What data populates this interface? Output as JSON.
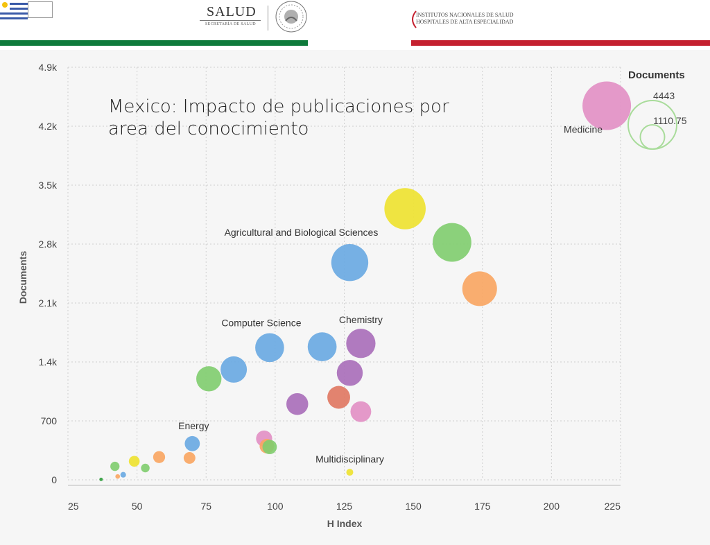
{
  "header": {
    "salud_logo": "SALUD",
    "salud_subtitle": "SECRETARÍA DE SALUD",
    "institution_line1": "INSTITUTOS NACIONALES DE SALUD",
    "institution_line2": "HOSPITALES DE ALTA ESPECIALIDAD",
    "colors": {
      "green_bar": "#0e7a3b",
      "red_bar": "#c4202f"
    }
  },
  "chart_data": {
    "type": "scatter",
    "title": "Mexico: Impacto de publicaciones por area del conocimiento",
    "xlabel": "H Index",
    "ylabel": "Documents",
    "xlim": [
      25,
      225
    ],
    "ylim": [
      0,
      4900
    ],
    "x_ticks": [
      "25",
      "50",
      "75",
      "100",
      "125",
      "150",
      "175",
      "200",
      "225"
    ],
    "y_ticks": [
      "0",
      "700",
      "1.4k",
      "2.1k",
      "2.8k",
      "3.5k",
      "4.2k",
      "4.9k"
    ],
    "grid": true,
    "size_legend": {
      "title": "Documents",
      "max_label": "4443",
      "min_label": "1110.75",
      "placement": "top-right"
    },
    "points": [
      {
        "x": 220,
        "y": 4443,
        "size": 4443,
        "color": "#e28fc4",
        "label": "Medicine"
      },
      {
        "x": 147,
        "y": 3220,
        "size": 3220,
        "color": "#eee22d",
        "label": ""
      },
      {
        "x": 164,
        "y": 2820,
        "size": 2820,
        "color": "#7fcd6e",
        "label": ""
      },
      {
        "x": 127,
        "y": 2580,
        "size": 2580,
        "color": "#68a8e2",
        "label": "Agricultural and Biological Sciences"
      },
      {
        "x": 174,
        "y": 2270,
        "size": 2270,
        "color": "#f9a560",
        "label": ""
      },
      {
        "x": 131,
        "y": 1620,
        "size": 1620,
        "color": "#a96db9",
        "label": "Chemistry"
      },
      {
        "x": 117,
        "y": 1580,
        "size": 1580,
        "color": "#68a8e2",
        "label": ""
      },
      {
        "x": 98,
        "y": 1570,
        "size": 1570,
        "color": "#68a8e2",
        "label": "Computer Science"
      },
      {
        "x": 85,
        "y": 1310,
        "size": 1310,
        "color": "#68a8e2",
        "label": ""
      },
      {
        "x": 127,
        "y": 1270,
        "size": 1270,
        "color": "#a96db9",
        "label": ""
      },
      {
        "x": 76,
        "y": 1200,
        "size": 1200,
        "color": "#7fcd6e",
        "label": ""
      },
      {
        "x": 123,
        "y": 980,
        "size": 980,
        "color": "#e07760",
        "label": ""
      },
      {
        "x": 108,
        "y": 900,
        "size": 900,
        "color": "#a96db9",
        "label": ""
      },
      {
        "x": 131,
        "y": 810,
        "size": 810,
        "color": "#e28fc4",
        "label": ""
      },
      {
        "x": 96,
        "y": 490,
        "size": 490,
        "color": "#e28fc4",
        "label": ""
      },
      {
        "x": 70,
        "y": 430,
        "size": 430,
        "color": "#68a8e2",
        "label": "Energy"
      },
      {
        "x": 97,
        "y": 400,
        "size": 400,
        "color": "#f9a560",
        "label": ""
      },
      {
        "x": 98,
        "y": 390,
        "size": 390,
        "color": "#7fcd6e",
        "label": ""
      },
      {
        "x": 58,
        "y": 270,
        "size": 270,
        "color": "#f9a560",
        "label": ""
      },
      {
        "x": 69,
        "y": 260,
        "size": 260,
        "color": "#f9a560",
        "label": ""
      },
      {
        "x": 49,
        "y": 220,
        "size": 220,
        "color": "#eee22d",
        "label": ""
      },
      {
        "x": 42,
        "y": 160,
        "size": 160,
        "color": "#7fcd6e",
        "label": ""
      },
      {
        "x": 53,
        "y": 140,
        "size": 140,
        "color": "#7fcd6e",
        "label": ""
      },
      {
        "x": 45,
        "y": 60,
        "size": 60,
        "color": "#68a8e2",
        "label": ""
      },
      {
        "x": 43,
        "y": 40,
        "size": 40,
        "color": "#f9a560",
        "label": ""
      },
      {
        "x": 127,
        "y": 90,
        "size": 90,
        "color": "#eee22d",
        "label": "Multidisciplinary"
      },
      {
        "x": 37,
        "y": 5,
        "size": 5,
        "color": "#2e9d3b",
        "label": ""
      }
    ]
  }
}
